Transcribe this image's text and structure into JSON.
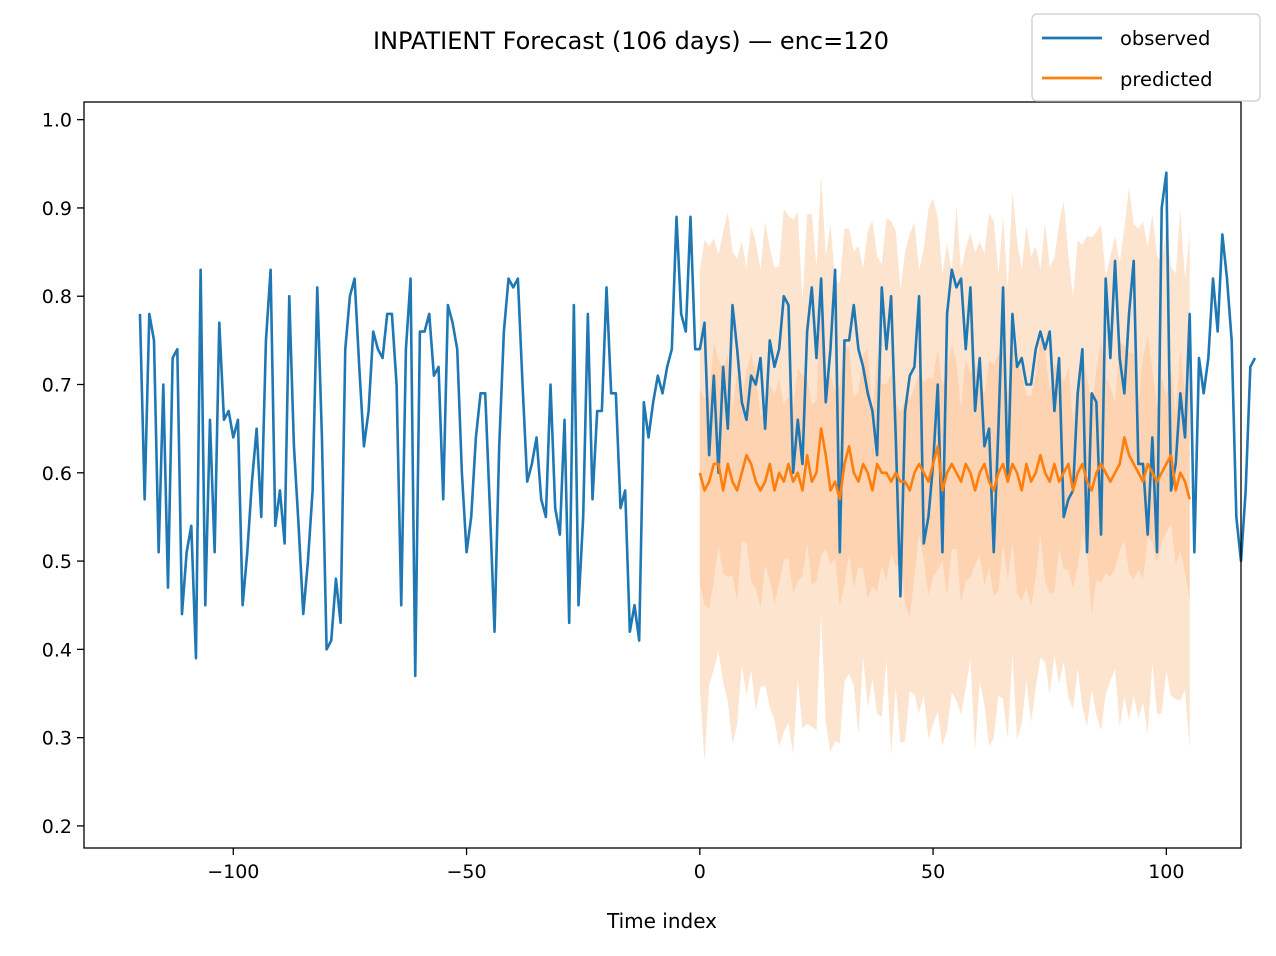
{
  "chart_data": {
    "type": "line",
    "title": "INPATIENT Forecast (106 days) — enc=120",
    "xlabel": "Time index",
    "ylabel": "",
    "xlim": [
      -132,
      116
    ],
    "ylim": [
      0.175,
      1.02
    ],
    "xticks": [
      -100,
      -50,
      0,
      50,
      100
    ],
    "xtick_labels": [
      "−100",
      "−50",
      "0",
      "50",
      "100"
    ],
    "yticks": [
      0.2,
      0.3,
      0.4,
      0.5,
      0.6,
      0.7,
      0.8,
      0.9,
      1.0
    ],
    "ytick_labels": [
      "0.2",
      "0.3",
      "0.4",
      "0.5",
      "0.6",
      "0.7",
      "0.8",
      "0.9",
      "1.0"
    ],
    "grid": false,
    "legend": {
      "placement": "top-right",
      "entries": [
        "observed",
        "predicted"
      ]
    },
    "colors": {
      "observed": "#1f77b4",
      "predicted": "#ff7f0e",
      "band_outer": "#fde4cf",
      "band_inner": "#fdd3b1"
    },
    "series": [
      {
        "name": "observed",
        "color": "#1f77b4",
        "x_start": -120,
        "values": [
          0.78,
          0.57,
          0.78,
          0.75,
          0.51,
          0.7,
          0.47,
          0.73,
          0.74,
          0.44,
          0.51,
          0.54,
          0.39,
          0.83,
          0.45,
          0.66,
          0.51,
          0.77,
          0.66,
          0.67,
          0.64,
          0.66,
          0.45,
          0.51,
          0.59,
          0.65,
          0.55,
          0.75,
          0.83,
          0.54,
          0.58,
          0.52,
          0.8,
          0.63,
          0.54,
          0.44,
          0.5,
          0.58,
          0.81,
          0.64,
          0.4,
          0.41,
          0.48,
          0.43,
          0.74,
          0.8,
          0.82,
          0.72,
          0.63,
          0.67,
          0.76,
          0.74,
          0.73,
          0.78,
          0.78,
          0.7,
          0.45,
          0.74,
          0.82,
          0.37,
          0.76,
          0.76,
          0.78,
          0.71,
          0.72,
          0.57,
          0.79,
          0.77,
          0.74,
          0.6,
          0.51,
          0.55,
          0.64,
          0.69,
          0.69,
          0.56,
          0.42,
          0.63,
          0.76,
          0.82,
          0.81,
          0.82,
          0.7,
          0.59,
          0.61,
          0.64,
          0.57,
          0.55,
          0.7,
          0.56,
          0.53,
          0.66,
          0.43,
          0.79,
          0.45,
          0.55,
          0.78,
          0.57,
          0.67,
          0.67,
          0.81,
          0.69,
          0.69,
          0.56,
          0.58,
          0.42,
          0.45,
          0.41,
          0.68,
          0.64,
          0.68,
          0.71,
          0.69,
          0.72,
          0.74,
          0.89,
          0.78,
          0.76,
          0.89,
          0.74,
          0.74,
          0.77,
          0.62,
          0.71,
          0.6,
          0.72,
          0.65,
          0.79,
          0.74,
          0.68,
          0.66,
          0.71,
          0.7,
          0.73,
          0.65,
          0.75,
          0.72,
          0.74,
          0.8,
          0.79,
          0.6,
          0.66,
          0.61,
          0.76,
          0.81,
          0.73,
          0.82,
          0.68,
          0.74,
          0.83,
          0.51,
          0.75,
          0.75,
          0.79,
          0.74,
          0.72,
          0.69,
          0.67,
          0.62,
          0.81,
          0.74,
          0.8,
          0.64,
          0.46,
          0.67,
          0.71,
          0.72,
          0.8,
          0.52,
          0.55,
          0.61,
          0.7,
          0.51,
          0.78,
          0.83,
          0.81,
          0.82,
          0.74,
          0.81,
          0.67,
          0.73,
          0.63,
          0.65,
          0.51,
          0.65,
          0.81,
          0.59,
          0.78,
          0.72,
          0.73,
          0.7,
          0.7,
          0.74,
          0.76,
          0.74,
          0.76,
          0.67,
          0.73,
          0.55,
          0.57,
          0.58,
          0.69,
          0.74,
          0.51,
          0.69,
          0.68,
          0.53,
          0.82,
          0.73,
          0.84,
          0.73,
          0.69,
          0.78,
          0.84,
          0.61,
          0.61,
          0.53,
          0.64,
          0.51,
          0.9,
          0.94,
          0.58,
          0.61,
          0.69,
          0.64,
          0.78,
          0.51,
          0.73,
          0.69,
          0.73,
          0.82,
          0.76,
          0.87,
          0.82,
          0.75,
          0.55,
          0.5,
          0.58,
          0.72,
          0.73
        ],
        "values_note": ""
      },
      {
        "name": "predicted",
        "color": "#ff7f0e",
        "x_start": 0,
        "values": [
          0.6,
          0.58,
          0.59,
          0.61,
          0.61,
          0.58,
          0.61,
          0.59,
          0.58,
          0.6,
          0.62,
          0.61,
          0.59,
          0.58,
          0.59,
          0.61,
          0.58,
          0.6,
          0.59,
          0.61,
          0.59,
          0.6,
          0.58,
          0.62,
          0.59,
          0.6,
          0.65,
          0.62,
          0.58,
          0.59,
          0.57,
          0.61,
          0.63,
          0.6,
          0.59,
          0.61,
          0.6,
          0.58,
          0.61,
          0.6,
          0.6,
          0.59,
          0.6,
          0.59,
          0.59,
          0.58,
          0.6,
          0.61,
          0.6,
          0.59,
          0.61,
          0.63,
          0.58,
          0.6,
          0.61,
          0.6,
          0.59,
          0.61,
          0.6,
          0.58,
          0.6,
          0.61,
          0.59,
          0.58,
          0.6,
          0.61,
          0.59,
          0.61,
          0.6,
          0.58,
          0.61,
          0.59,
          0.6,
          0.62,
          0.6,
          0.59,
          0.61,
          0.59,
          0.6,
          0.61,
          0.58,
          0.6,
          0.61,
          0.59,
          0.58,
          0.6,
          0.61,
          0.6,
          0.59,
          0.6,
          0.61,
          0.64,
          0.62,
          0.61,
          0.6,
          0.59,
          0.61,
          0.6,
          0.59,
          0.6,
          0.61,
          0.62,
          0.58,
          0.6,
          0.59,
          0.57
        ]
      }
    ],
    "band_outer_halfwidth": 0.26,
    "band_inner_halfwidth": 0.11
  }
}
